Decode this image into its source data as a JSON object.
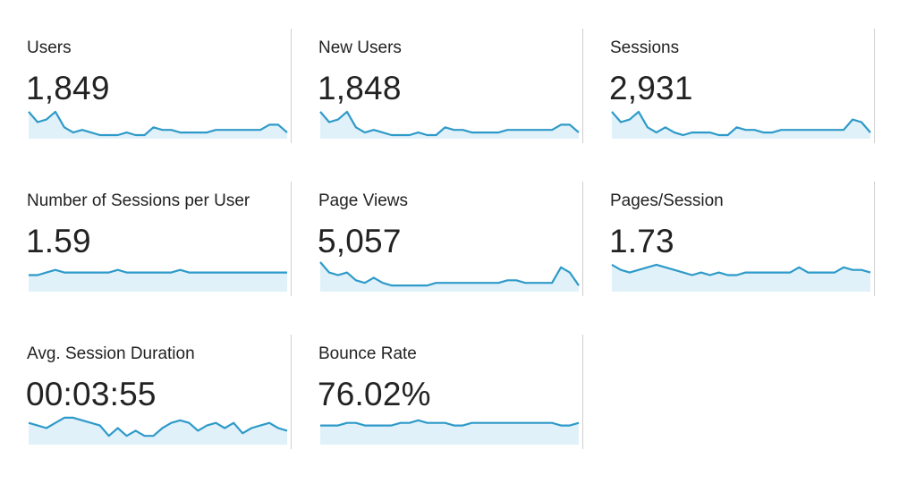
{
  "colors": {
    "line": "#2e9ac9",
    "fill": "#e1f1f9",
    "divider": "#cfcfcf",
    "text": "#222222"
  },
  "metrics": [
    {
      "key": "users",
      "label": "Users",
      "value": "1,849",
      "trend": [
        9,
        5,
        6,
        9,
        3,
        1,
        2,
        1,
        0,
        0,
        0,
        1,
        0,
        0,
        3,
        2,
        2,
        1,
        1,
        1,
        1,
        2,
        2,
        2,
        2,
        2,
        2,
        4,
        4,
        1
      ]
    },
    {
      "key": "new-users",
      "label": "New Users",
      "value": "1,848",
      "trend": [
        9,
        5,
        6,
        9,
        3,
        1,
        2,
        1,
        0,
        0,
        0,
        1,
        0,
        0,
        3,
        2,
        2,
        1,
        1,
        1,
        1,
        2,
        2,
        2,
        2,
        2,
        2,
        4,
        4,
        1
      ]
    },
    {
      "key": "sessions",
      "label": "Sessions",
      "value": "2,931",
      "trend": [
        9,
        5,
        6,
        9,
        3,
        1,
        3,
        1,
        0,
        1,
        1,
        1,
        0,
        0,
        3,
        2,
        2,
        1,
        1,
        2,
        2,
        2,
        2,
        2,
        2,
        2,
        2,
        6,
        5,
        1
      ]
    },
    {
      "key": "sessions-per-user",
      "label": "Number of Sessions per User",
      "value": "1.59",
      "trend": [
        5,
        5,
        6,
        7,
        6,
        6,
        6,
        6,
        6,
        6,
        7,
        6,
        6,
        6,
        6,
        6,
        6,
        7,
        6,
        6,
        6,
        6,
        6,
        6,
        6,
        6,
        6,
        6,
        6,
        6
      ]
    },
    {
      "key": "page-views",
      "label": "Page Views",
      "value": "5,057",
      "trend": [
        10,
        6,
        5,
        6,
        3,
        2,
        4,
        2,
        1,
        1,
        1,
        1,
        1,
        2,
        2,
        2,
        2,
        2,
        2,
        2,
        2,
        3,
        3,
        2,
        2,
        2,
        2,
        8,
        6,
        1
      ]
    },
    {
      "key": "pages-per-session",
      "label": "Pages/Session",
      "value": "1.73",
      "trend": [
        9,
        7,
        6,
        7,
        8,
        9,
        8,
        7,
        6,
        5,
        6,
        5,
        6,
        5,
        5,
        6,
        6,
        6,
        6,
        6,
        6,
        8,
        6,
        6,
        6,
        6,
        8,
        7,
        7,
        6
      ]
    },
    {
      "key": "avg-session-duration",
      "label": "Avg. Session Duration",
      "value": "00:03:55",
      "trend": [
        7,
        6,
        5,
        7,
        9,
        9,
        8,
        7,
        6,
        2,
        5,
        2,
        4,
        2,
        2,
        5,
        7,
        8,
        7,
        4,
        6,
        7,
        5,
        7,
        3,
        5,
        6,
        7,
        5,
        4
      ]
    },
    {
      "key": "bounce-rate",
      "label": "Bounce Rate",
      "value": "76.02%",
      "trend": [
        6,
        6,
        6,
        7,
        7,
        6,
        6,
        6,
        6,
        7,
        7,
        8,
        7,
        7,
        7,
        6,
        6,
        7,
        7,
        7,
        7,
        7,
        7,
        7,
        7,
        7,
        7,
        6,
        6,
        7
      ]
    }
  ]
}
